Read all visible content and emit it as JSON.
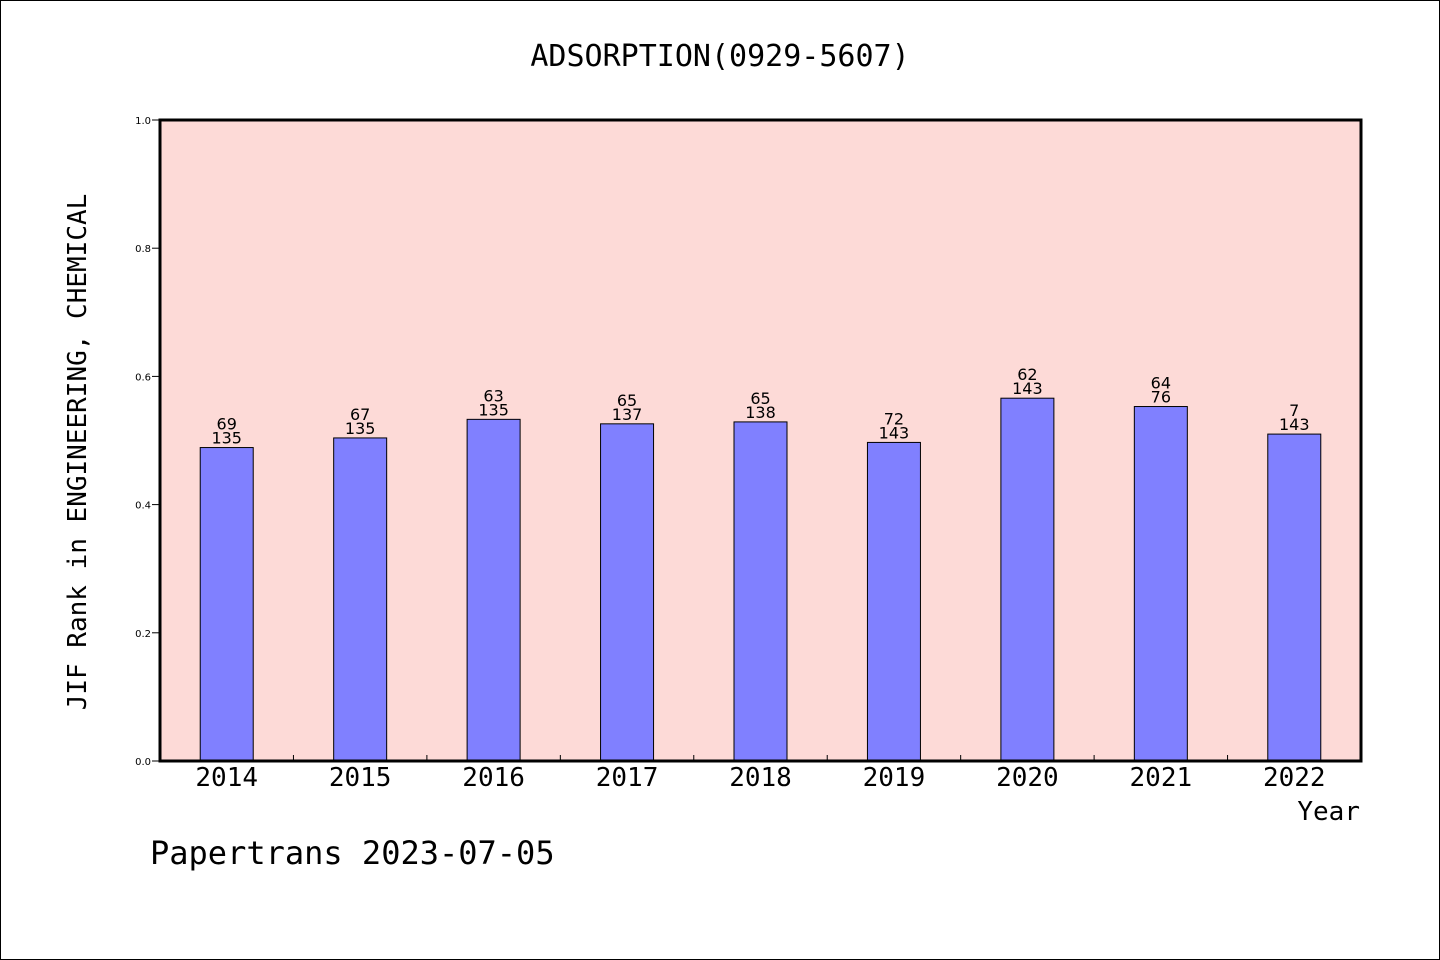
{
  "chart_data": {
    "type": "bar",
    "title": "ADSORPTION(0929-5607)",
    "xlabel": "Year",
    "ylabel": "JIF Rank in ENGINEERING, CHEMICAL",
    "ylim": [
      0,
      1.0
    ],
    "yticks": [
      "0.0",
      "0.2",
      "0.4",
      "0.6",
      "0.8",
      "1.0"
    ],
    "categories": [
      "2014",
      "2015",
      "2016",
      "2017",
      "2018",
      "2019",
      "2020",
      "2021",
      "2022"
    ],
    "values": [
      0.489,
      0.504,
      0.533,
      0.526,
      0.529,
      0.497,
      0.566,
      0.553,
      0.51
    ],
    "rank": [
      "69",
      "67",
      "63",
      "65",
      "65",
      "72",
      "62",
      "64",
      "7"
    ],
    "total": [
      "135",
      "135",
      "135",
      "137",
      "138",
      "143",
      "143",
      "76",
      "143"
    ],
    "colors": {
      "plot_bg": "#fddad7",
      "bar": "#8080ff",
      "bar_edge": "#000000"
    },
    "grid": false,
    "legend": "none"
  },
  "footer": {
    "watermark": "Papertrans 2023-07-05"
  }
}
